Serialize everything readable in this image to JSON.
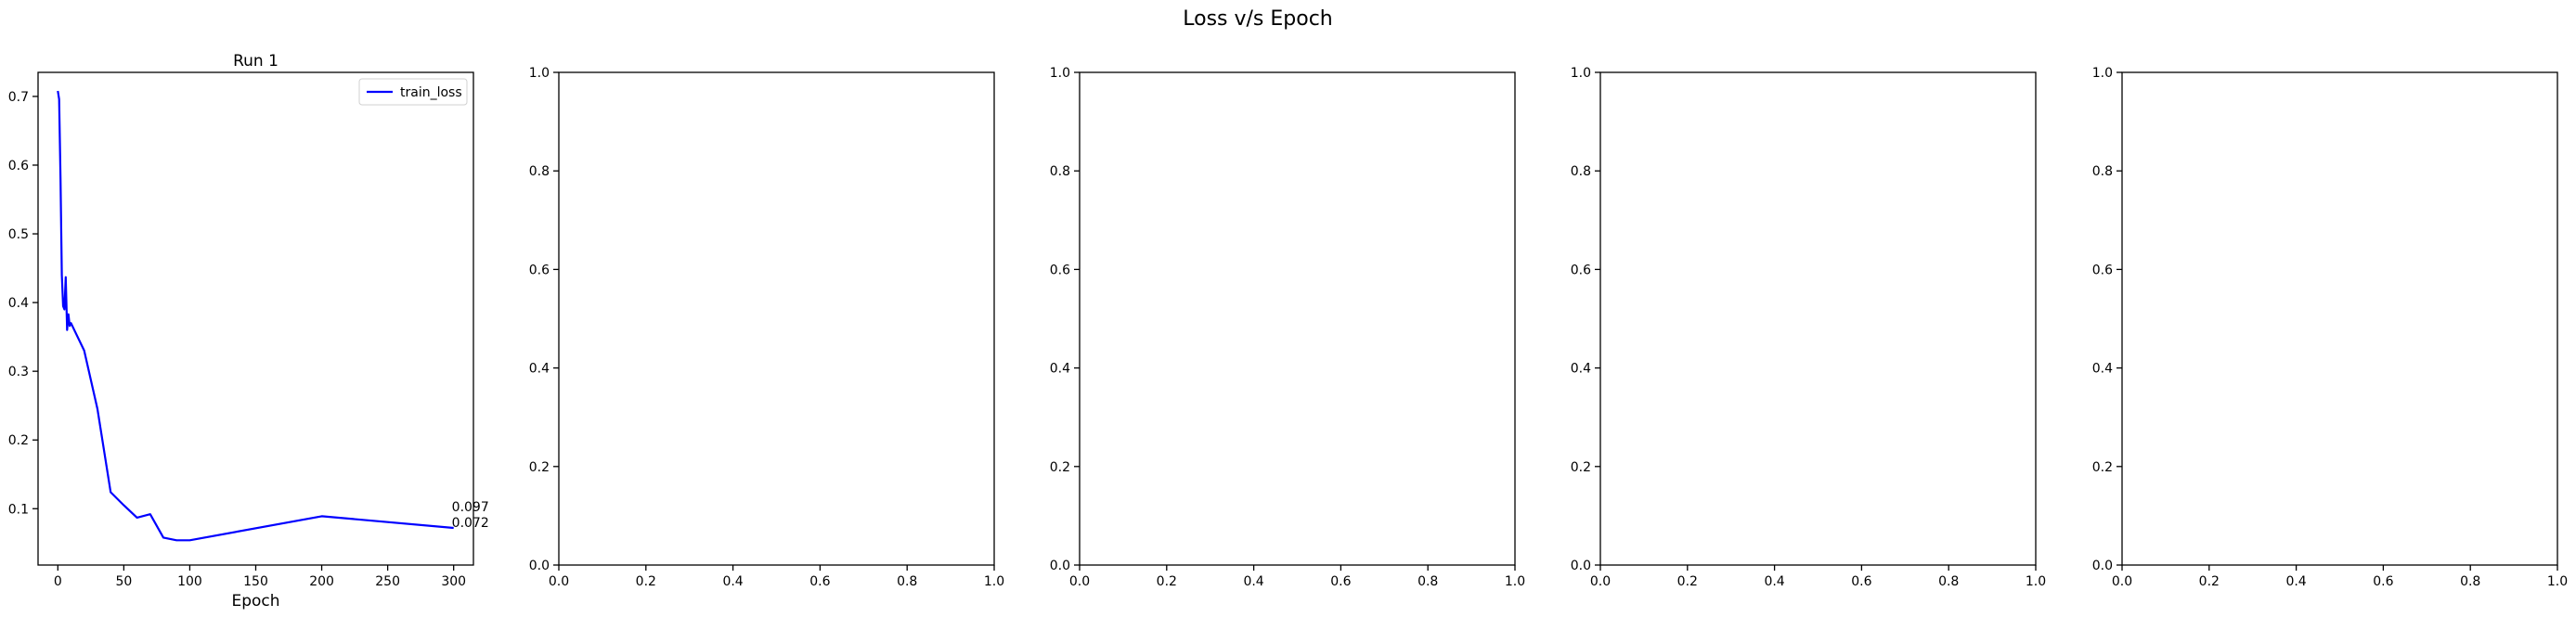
{
  "figure": {
    "suptitle": "Loss v/s Epoch"
  },
  "colors": {
    "series": "#0000ff",
    "axes": "#000000",
    "background": "#ffffff"
  },
  "chart_data": [
    {
      "type": "line",
      "title": "Run 1",
      "xlabel": "Epoch",
      "ylabel": "",
      "xlim": [
        -15,
        315
      ],
      "ylim": [
        0.018,
        0.735
      ],
      "xticks": [
        0,
        50,
        100,
        150,
        200,
        250,
        300
      ],
      "yticks": [
        0.1,
        0.2,
        0.3,
        0.4,
        0.5,
        0.6,
        0.7
      ],
      "grid": false,
      "legend": "top-right",
      "series": [
        {
          "name": "train_loss",
          "x": [
            0,
            1,
            2,
            3,
            4,
            5,
            6,
            7,
            8,
            9,
            10,
            20,
            30,
            40,
            50,
            60,
            70,
            80,
            90,
            100,
            200,
            300
          ],
          "y": [
            0.708,
            0.696,
            0.58,
            0.44,
            0.395,
            0.39,
            0.437,
            0.36,
            0.383,
            0.366,
            0.37,
            0.33,
            0.245,
            0.124,
            0.105,
            0.087,
            0.092,
            0.058,
            0.054,
            0.054,
            0.089,
            0.072
          ]
        }
      ],
      "annotations": [
        "0.097",
        "0.072"
      ]
    },
    {
      "type": "line",
      "title": "",
      "xlim": [
        0,
        1
      ],
      "ylim": [
        0,
        1
      ],
      "xticks": [
        0.0,
        0.2,
        0.4,
        0.6,
        0.8,
        1.0
      ],
      "yticks": [
        0.0,
        0.2,
        0.4,
        0.6,
        0.8,
        1.0
      ],
      "series": []
    },
    {
      "type": "line",
      "title": "",
      "xlim": [
        0,
        1
      ],
      "ylim": [
        0,
        1
      ],
      "xticks": [
        0.0,
        0.2,
        0.4,
        0.6,
        0.8,
        1.0
      ],
      "yticks": [
        0.0,
        0.2,
        0.4,
        0.6,
        0.8,
        1.0
      ],
      "series": []
    },
    {
      "type": "line",
      "title": "",
      "xlim": [
        0,
        1
      ],
      "ylim": [
        0,
        1
      ],
      "xticks": [
        0.0,
        0.2,
        0.4,
        0.6,
        0.8,
        1.0
      ],
      "yticks": [
        0.0,
        0.2,
        0.4,
        0.6,
        0.8,
        1.0
      ],
      "series": []
    },
    {
      "type": "line",
      "title": "",
      "xlim": [
        0,
        1
      ],
      "ylim": [
        0,
        1
      ],
      "xticks": [
        0.0,
        0.2,
        0.4,
        0.6,
        0.8,
        1.0
      ],
      "yticks": [
        0.0,
        0.2,
        0.4,
        0.6,
        0.8,
        1.0
      ],
      "series": []
    }
  ]
}
